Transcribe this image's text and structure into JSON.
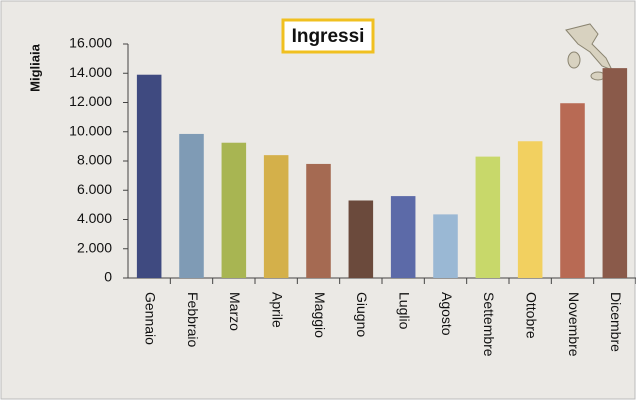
{
  "chart_data": {
    "type": "bar",
    "title": "Ingressi",
    "y_label": "Migliaia",
    "categories": [
      "Gennaio",
      "Febbraio",
      "Marzo",
      "Aprile",
      "Maggio",
      "Giugno",
      "Luglio",
      "Agosto",
      "Settembre",
      "Ottobre",
      "Novembre",
      "Dicembre"
    ],
    "values": [
      13900,
      9850,
      9250,
      8400,
      7800,
      5300,
      5600,
      4350,
      8300,
      9350,
      11950,
      14350
    ],
    "colors": [
      "#3f4a80",
      "#7f9bb5",
      "#a8b552",
      "#d4b04a",
      "#a56a52",
      "#6b4a3c",
      "#5c6aa8",
      "#9ab8d4",
      "#c8d86a",
      "#f2d060",
      "#b86a54",
      "#8a5a4a"
    ],
    "ylim": [
      0,
      16000
    ],
    "yticks": [
      {
        "value": 0,
        "label": "0"
      },
      {
        "value": 2000,
        "label": "2.000"
      },
      {
        "value": 4000,
        "label": "4.000"
      },
      {
        "value": 6000,
        "label": "6.000"
      },
      {
        "value": 8000,
        "label": "8.000"
      },
      {
        "value": 10000,
        "label": "10.000"
      },
      {
        "value": 12000,
        "label": "12.000"
      },
      {
        "value": 14000,
        "label": "14.000"
      },
      {
        "value": 16000,
        "label": "16.000"
      }
    ],
    "grid": false
  }
}
